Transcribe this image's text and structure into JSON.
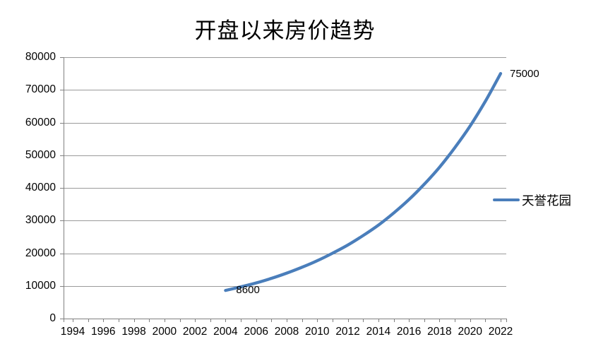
{
  "chart_data": {
    "type": "line",
    "title": "开盘以来房价趋势",
    "xlabel": "",
    "ylabel": "",
    "grid": true,
    "legend_position": "right-middle",
    "ylim": [
      0,
      80000
    ],
    "y_tick_values": [
      0,
      10000,
      20000,
      30000,
      40000,
      50000,
      60000,
      70000,
      80000
    ],
    "y_tick_labels": [
      "0",
      "10000",
      "20000",
      "30000",
      "40000",
      "50000",
      "60000",
      "70000",
      "80000"
    ],
    "x_axis_years": [
      1994,
      2022
    ],
    "x_minor_tick_every_years": 1,
    "x_tick_years": [
      1994,
      1996,
      1998,
      2000,
      2002,
      2004,
      2006,
      2008,
      2010,
      2012,
      2014,
      2016,
      2018,
      2020,
      2022
    ],
    "x_tick_labels": [
      "1994",
      "1996",
      "1998",
      "2000",
      "2002",
      "2004",
      "2006",
      "2008",
      "2010",
      "2012",
      "2014",
      "2016",
      "2018",
      "2020",
      "2022"
    ],
    "x": [
      2004,
      2005,
      2006,
      2007,
      2008,
      2009,
      2010,
      2011,
      2012,
      2013,
      2014,
      2015,
      2016,
      2017,
      2018,
      2019,
      2020,
      2021,
      2022
    ],
    "series": [
      {
        "name": "天誉花园",
        "color": "#4a7ebb",
        "values": [
          8600,
          9700,
          10900,
          12300,
          13900,
          15700,
          17700,
          20000,
          22500,
          25400,
          28600,
          32300,
          36400,
          41100,
          46300,
          52300,
          58900,
          66500,
          75000
        ]
      }
    ],
    "annotations": [
      {
        "text": "8600",
        "year": 2004,
        "value": 8600
      },
      {
        "text": "75000",
        "year": 2022,
        "value": 75000
      }
    ]
  },
  "colors": {
    "series": "#4a7ebb",
    "gridline": "#9a9a9a",
    "axis": "#808080",
    "text": "#000000",
    "background": "#ffffff"
  }
}
